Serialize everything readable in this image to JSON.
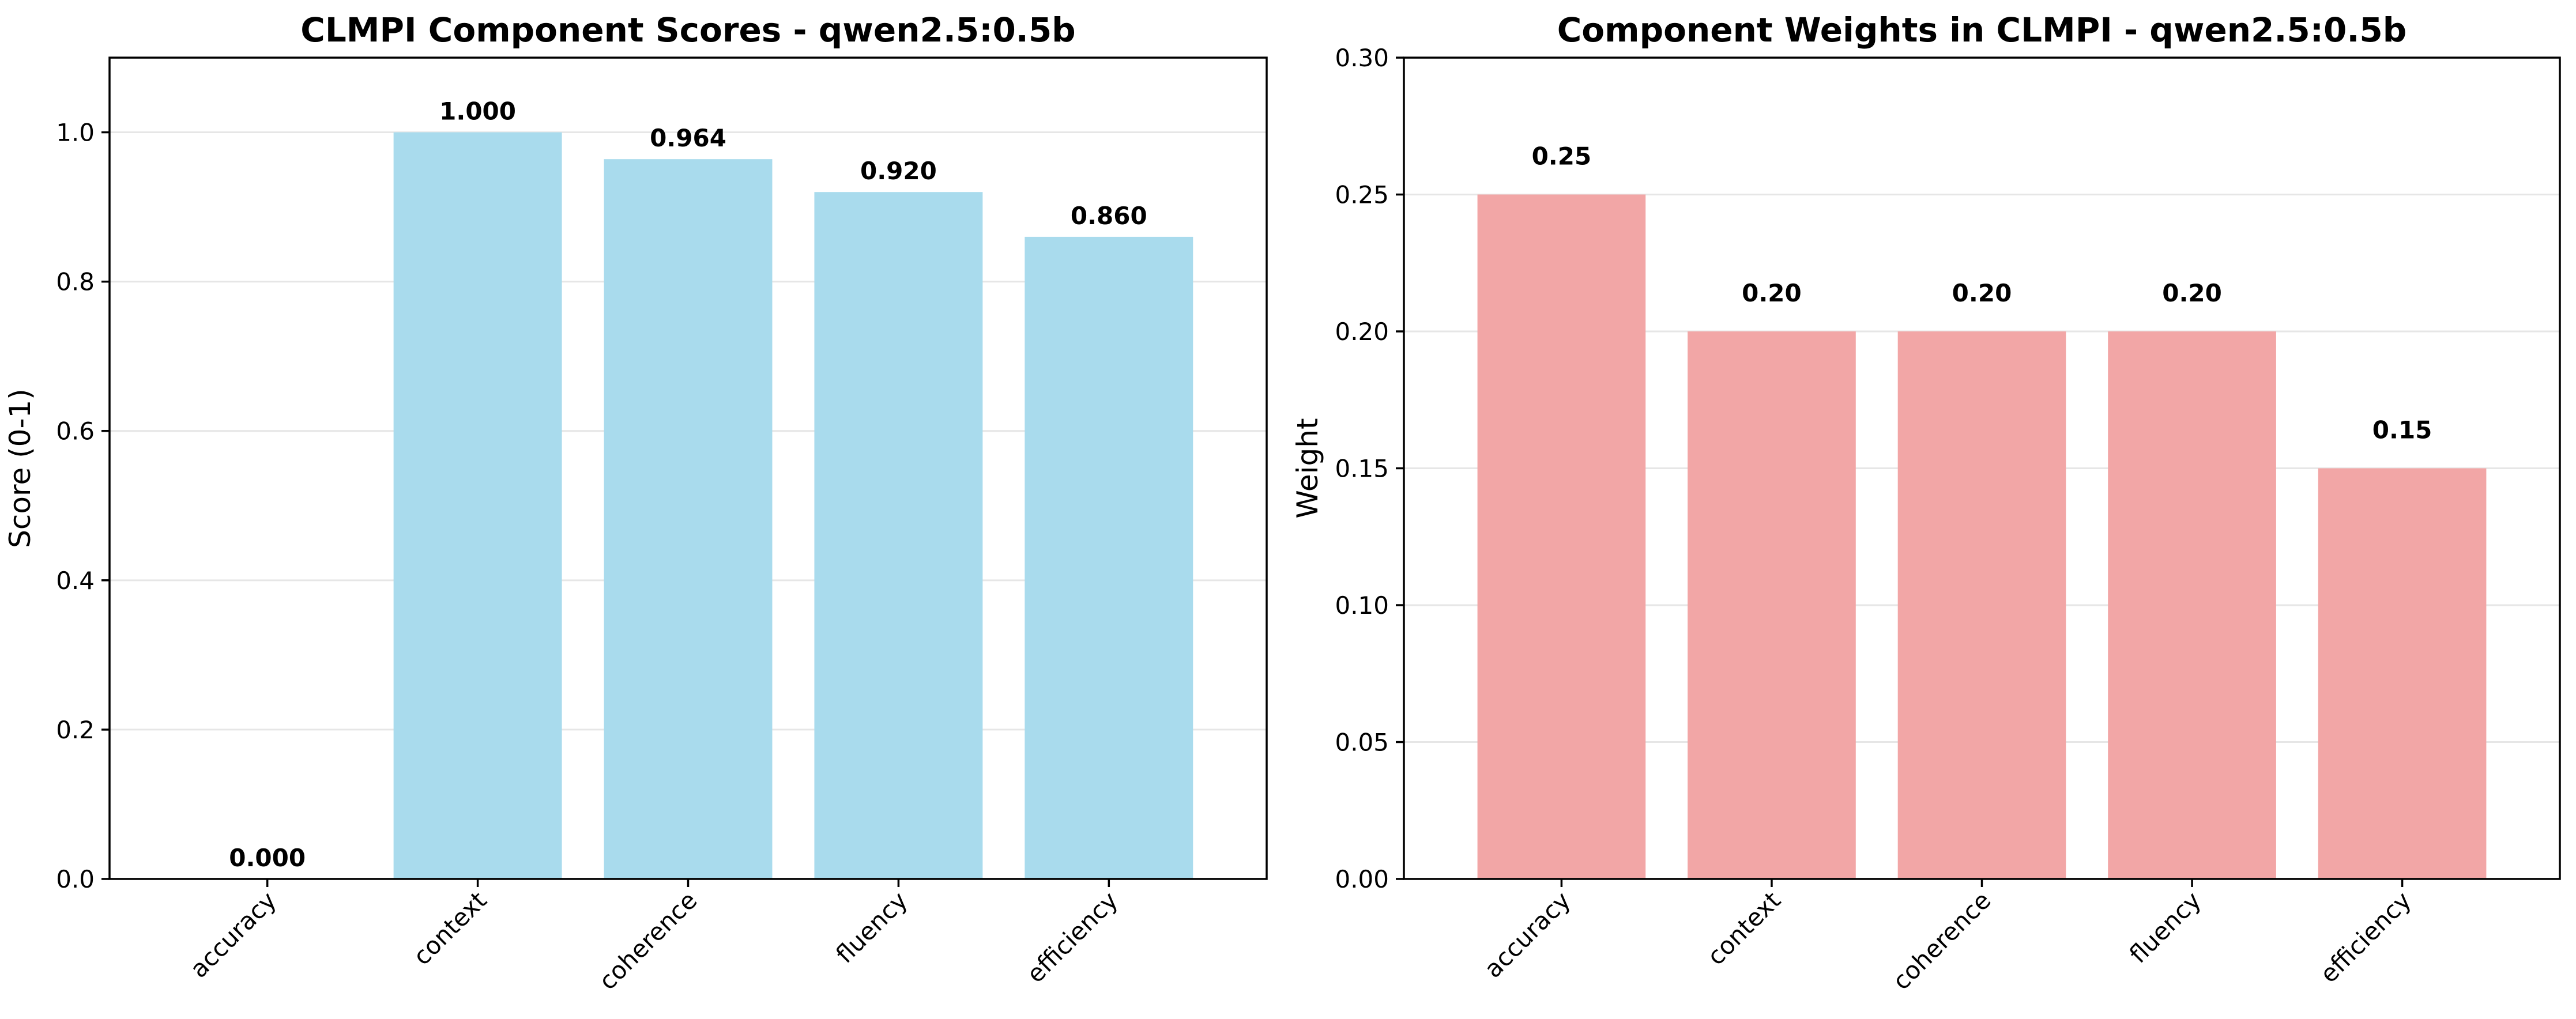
{
  "chart_data": [
    {
      "type": "bar",
      "title": "CLMPI Component Scores - qwen2.5:0.5b",
      "xlabel": "",
      "ylabel": "Score (0-1)",
      "categories": [
        "accuracy",
        "context",
        "coherence",
        "fluency",
        "efficiency"
      ],
      "values": [
        0.0,
        1.0,
        0.964,
        0.92,
        0.86
      ],
      "value_labels": [
        "0.000",
        "1.000",
        "0.964",
        "0.920",
        "0.860"
      ],
      "ylim": [
        0,
        1.1
      ],
      "yticks": [
        0.0,
        0.2,
        0.4,
        0.6,
        0.8,
        1.0
      ],
      "ytick_labels": [
        "0.0",
        "0.2",
        "0.4",
        "0.6",
        "0.8",
        "1.0"
      ],
      "grid": "y",
      "color": "#a9dbed"
    },
    {
      "type": "bar",
      "title": "Component Weights in CLMPI - qwen2.5:0.5b",
      "xlabel": "",
      "ylabel": "Weight",
      "categories": [
        "accuracy",
        "context",
        "coherence",
        "fluency",
        "efficiency"
      ],
      "values": [
        0.25,
        0.2,
        0.2,
        0.2,
        0.15
      ],
      "value_labels": [
        "0.25",
        "0.20",
        "0.20",
        "0.20",
        "0.15"
      ],
      "ylim": [
        0,
        0.3
      ],
      "yticks": [
        0.0,
        0.05,
        0.1,
        0.15,
        0.2,
        0.25,
        0.3
      ],
      "ytick_labels": [
        "0.00",
        "0.05",
        "0.10",
        "0.15",
        "0.20",
        "0.25",
        "0.30"
      ],
      "grid": "y",
      "color": "#f2a6a6"
    }
  ]
}
